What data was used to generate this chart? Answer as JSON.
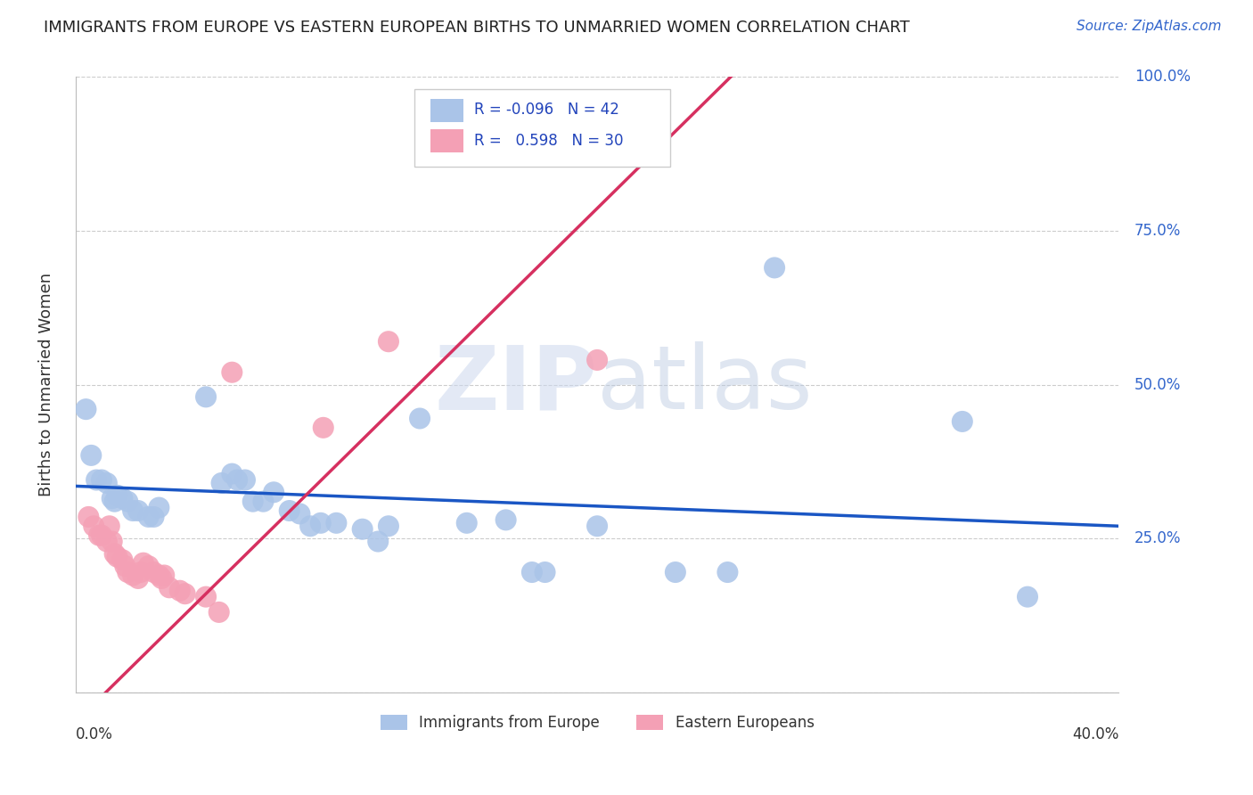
{
  "title": "IMMIGRANTS FROM EUROPE VS EASTERN EUROPEAN BIRTHS TO UNMARRIED WOMEN CORRELATION CHART",
  "source": "Source: ZipAtlas.com",
  "ylabel": "Births to Unmarried Women",
  "legend_blue_r": "-0.096",
  "legend_blue_n": "42",
  "legend_pink_r": "0.598",
  "legend_pink_n": "30",
  "legend_blue_label": "Immigrants from Europe",
  "legend_pink_label": "Eastern Europeans",
  "blue_color": "#aac4e8",
  "pink_color": "#f4a0b5",
  "blue_line_color": "#1a56c4",
  "pink_line_color": "#d63060",
  "watermark_zip": "ZIP",
  "watermark_atlas": "atlas",
  "blue_scatter": [
    [
      0.004,
      0.46
    ],
    [
      0.006,
      0.385
    ],
    [
      0.008,
      0.345
    ],
    [
      0.01,
      0.345
    ],
    [
      0.012,
      0.34
    ],
    [
      0.014,
      0.315
    ],
    [
      0.015,
      0.31
    ],
    [
      0.016,
      0.32
    ],
    [
      0.018,
      0.315
    ],
    [
      0.02,
      0.31
    ],
    [
      0.022,
      0.295
    ],
    [
      0.024,
      0.295
    ],
    [
      0.028,
      0.285
    ],
    [
      0.03,
      0.285
    ],
    [
      0.032,
      0.3
    ],
    [
      0.05,
      0.48
    ],
    [
      0.056,
      0.34
    ],
    [
      0.06,
      0.355
    ],
    [
      0.062,
      0.345
    ],
    [
      0.065,
      0.345
    ],
    [
      0.068,
      0.31
    ],
    [
      0.072,
      0.31
    ],
    [
      0.076,
      0.325
    ],
    [
      0.082,
      0.295
    ],
    [
      0.086,
      0.29
    ],
    [
      0.09,
      0.27
    ],
    [
      0.094,
      0.275
    ],
    [
      0.1,
      0.275
    ],
    [
      0.11,
      0.265
    ],
    [
      0.116,
      0.245
    ],
    [
      0.12,
      0.27
    ],
    [
      0.132,
      0.445
    ],
    [
      0.165,
      0.28
    ],
    [
      0.175,
      0.195
    ],
    [
      0.18,
      0.195
    ],
    [
      0.23,
      0.195
    ],
    [
      0.25,
      0.195
    ],
    [
      0.268,
      0.69
    ],
    [
      0.34,
      0.44
    ],
    [
      0.365,
      0.155
    ],
    [
      0.15,
      0.275
    ],
    [
      0.2,
      0.27
    ]
  ],
  "pink_scatter": [
    [
      0.005,
      0.285
    ],
    [
      0.007,
      0.27
    ],
    [
      0.009,
      0.255
    ],
    [
      0.01,
      0.255
    ],
    [
      0.012,
      0.245
    ],
    [
      0.013,
      0.27
    ],
    [
      0.014,
      0.245
    ],
    [
      0.015,
      0.225
    ],
    [
      0.016,
      0.22
    ],
    [
      0.018,
      0.215
    ],
    [
      0.019,
      0.205
    ],
    [
      0.02,
      0.195
    ],
    [
      0.022,
      0.19
    ],
    [
      0.024,
      0.185
    ],
    [
      0.025,
      0.195
    ],
    [
      0.026,
      0.21
    ],
    [
      0.028,
      0.205
    ],
    [
      0.03,
      0.195
    ],
    [
      0.032,
      0.19
    ],
    [
      0.033,
      0.185
    ],
    [
      0.034,
      0.19
    ],
    [
      0.036,
      0.17
    ],
    [
      0.04,
      0.165
    ],
    [
      0.042,
      0.16
    ],
    [
      0.05,
      0.155
    ],
    [
      0.055,
      0.13
    ],
    [
      0.06,
      0.52
    ],
    [
      0.095,
      0.43
    ],
    [
      0.12,
      0.57
    ],
    [
      0.2,
      0.54
    ]
  ],
  "xlim": [
    0.0,
    0.4
  ],
  "ylim": [
    0.0,
    1.0
  ],
  "x_ticks": [
    0.0,
    0.1,
    0.2,
    0.3,
    0.4
  ],
  "y_ticks": [
    0.0,
    0.25,
    0.5,
    0.75,
    1.0
  ],
  "figsize": [
    14.06,
    8.92
  ],
  "dpi": 100
}
